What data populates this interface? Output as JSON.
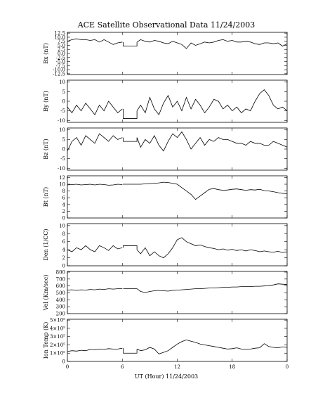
{
  "chart_data": {
    "title": "ACE Satellite Observational Data   11/24/2003",
    "xlabel": "UT (Hour)   11/24/2003",
    "x_ticks": [
      "0",
      "6",
      "12",
      "18",
      "0"
    ],
    "x_tick_hours": [
      0,
      6,
      12,
      18,
      24
    ],
    "xlim": [
      0,
      24
    ],
    "data_gap_hours": [
      6.1,
      7.6
    ],
    "panels": [
      {
        "type": "line",
        "ylabel": "Bx (nT)",
        "ylim": [
          -13,
          13
        ],
        "yticks": [
          12.5,
          10.0,
          7.5,
          5.0,
          2.5,
          0.0,
          -2.5,
          -5.0,
          -7.5,
          -10.0,
          -12.5
        ],
        "ytick_labels": [
          "12.5",
          "10.0",
          "7.5",
          "5.0",
          "2.5",
          "0.0",
          "-2.5",
          "-5.0",
          "-7.5",
          "-10.0",
          "-12.5"
        ],
        "x": [
          0,
          0.5,
          1,
          1.5,
          2,
          2.5,
          3,
          3.5,
          4,
          4.5,
          5,
          5.5,
          6,
          7.6,
          8,
          8.5,
          9,
          9.5,
          10,
          10.5,
          11,
          11.5,
          12,
          12.5,
          13,
          13.5,
          14,
          14.5,
          15,
          15.5,
          16,
          16.5,
          17,
          17.5,
          18,
          18.5,
          19,
          19.5,
          20,
          20.5,
          21,
          21.5,
          22,
          22.5,
          23,
          23.5,
          24
        ],
        "y": [
          7.5,
          8.5,
          9,
          8.5,
          8.5,
          8,
          8.5,
          7,
          8.5,
          7,
          5.5,
          6.5,
          7,
          7,
          8.5,
          7.5,
          7,
          8,
          7.5,
          6.5,
          6,
          7.5,
          6.5,
          5.5,
          3,
          6.5,
          5,
          6,
          7,
          6.5,
          7,
          8,
          8.5,
          7.5,
          8,
          7,
          7,
          7.5,
          7,
          6,
          5.5,
          6.5,
          6.5,
          6,
          6.5,
          4.5,
          6
        ],
        "gap_value": 4.5
      },
      {
        "type": "line",
        "ylabel": "By (nT)",
        "ylim": [
          -11,
          11
        ],
        "yticks": [
          10,
          5,
          0,
          -5,
          -10
        ],
        "ytick_labels": [
          "10",
          "5",
          "0",
          "-5",
          "-10"
        ],
        "x": [
          0,
          0.5,
          1,
          1.5,
          2,
          2.5,
          3,
          3.5,
          4,
          4.5,
          5,
          5.5,
          6,
          7.6,
          8,
          8.5,
          9,
          9.5,
          10,
          10.5,
          11,
          11.5,
          12,
          12.5,
          13,
          13.5,
          14,
          14.5,
          15,
          15.5,
          16,
          16.5,
          17,
          17.5,
          18,
          18.5,
          19,
          19.5,
          20,
          20.5,
          21,
          21.5,
          22,
          22.5,
          23,
          23.5,
          24
        ],
        "y": [
          -3,
          -6,
          -2,
          -5,
          -1,
          -4,
          -7,
          -2,
          -5,
          0,
          -3,
          -6,
          -4,
          -5,
          -2,
          -6,
          2,
          -4,
          -7,
          -1,
          3,
          -3,
          0,
          -5,
          2,
          -4,
          1,
          -2,
          -6,
          -3,
          1,
          0,
          -4,
          -2,
          -5,
          -3,
          -6,
          -4,
          -5,
          0,
          4,
          6,
          3,
          -2,
          -4,
          -3,
          -5
        ],
        "gap_value": -9
      },
      {
        "type": "line",
        "ylabel": "Bz (nT)",
        "ylim": [
          -11,
          11
        ],
        "yticks": [
          10,
          5,
          0,
          -5,
          -10
        ],
        "ytick_labels": [
          "10",
          "5",
          "0",
          "-5",
          "-10"
        ],
        "x": [
          0,
          0.5,
          1,
          1.5,
          2,
          2.5,
          3,
          3.5,
          4,
          4.5,
          5,
          5.5,
          6,
          7.6,
          8,
          8.5,
          9,
          9.5,
          10,
          10.5,
          11,
          11.5,
          12,
          12.5,
          13,
          13.5,
          14,
          14.5,
          15,
          15.5,
          16,
          16.5,
          17,
          17.5,
          18,
          18.5,
          19,
          19.5,
          20,
          20.5,
          21,
          21.5,
          22,
          22.5,
          23,
          23.5,
          24
        ],
        "y": [
          -1,
          4,
          6,
          2,
          7,
          5,
          3,
          8,
          6,
          4,
          7,
          5,
          6,
          6,
          1,
          5,
          3,
          7,
          2,
          -1,
          4,
          8,
          6,
          9,
          5,
          0,
          3,
          6,
          2,
          5,
          4,
          6,
          5,
          5,
          4,
          3,
          3,
          2,
          4,
          3,
          3,
          2,
          2,
          4,
          3,
          2,
          1
        ],
        "gap_value": 4
      },
      {
        "type": "line",
        "ylabel": "Bt (nT)",
        "ylim": [
          0,
          12.5
        ],
        "yticks": [
          12,
          10,
          8,
          6,
          4,
          2,
          0
        ],
        "ytick_labels": [
          "12",
          "10",
          "8",
          "6",
          "4",
          "2",
          "0"
        ],
        "x": [
          0,
          0.5,
          1,
          1.5,
          2,
          2.5,
          3,
          3.5,
          4,
          4.5,
          5,
          5.5,
          6,
          7.6,
          8,
          8.5,
          9,
          9.5,
          10,
          10.5,
          11,
          11.5,
          12,
          12.5,
          13,
          13.5,
          14,
          14.5,
          15,
          15.5,
          16,
          16.5,
          17,
          17.5,
          18,
          18.5,
          19,
          19.5,
          20,
          20.5,
          21,
          21.5,
          22,
          22.5,
          23,
          23.5,
          24
        ],
        "y": [
          9.8,
          9.9,
          10,
          9.8,
          9.9,
          10,
          9.8,
          10,
          9.9,
          9.7,
          9.8,
          10,
          9.9,
          10,
          10,
          10.1,
          10.2,
          10.3,
          10.4,
          10.6,
          10.5,
          10.3,
          10,
          9,
          8,
          7,
          5.5,
          6.5,
          7.5,
          8.5,
          8.7,
          8.4,
          8.2,
          8.3,
          8.5,
          8.6,
          8.4,
          8.2,
          8.4,
          8.3,
          8.5,
          8.1,
          8,
          7.8,
          7.5,
          7.3,
          7.2
        ],
        "gap_value": 10
      },
      {
        "type": "line",
        "ylabel": "Den (1/CC)",
        "ylim": [
          0,
          10.5
        ],
        "yticks": [
          10,
          8,
          6,
          4,
          2,
          0
        ],
        "ytick_labels": [
          "10",
          "8",
          "6",
          "4",
          "2",
          "0"
        ],
        "x": [
          0,
          0.5,
          1,
          1.5,
          2,
          2.5,
          3,
          3.5,
          4,
          4.5,
          5,
          5.5,
          6,
          7.6,
          8,
          8.5,
          9,
          9.5,
          10,
          10.5,
          11,
          11.5,
          12,
          12.5,
          13,
          13.5,
          14,
          14.5,
          15,
          15.5,
          16,
          16.5,
          17,
          17.5,
          18,
          18.5,
          19,
          19.5,
          20,
          20.5,
          21,
          21.5,
          22,
          22.5,
          23,
          23.5,
          24
        ],
        "y": [
          4,
          3.5,
          4.5,
          4,
          5,
          4,
          3.5,
          5,
          4.5,
          3.8,
          5,
          4.2,
          4.5,
          4,
          3,
          4.5,
          2.5,
          3.5,
          2.5,
          2,
          3,
          4.5,
          6.5,
          7,
          6,
          5.5,
          5,
          5.2,
          4.8,
          4.5,
          4.3,
          4,
          4.2,
          3.9,
          4.1,
          3.8,
          4,
          3.7,
          4,
          3.8,
          3.5,
          3.7,
          3.5,
          3.4,
          3.6,
          3.3,
          3.5
        ],
        "gap_value": 5
      },
      {
        "type": "line",
        "ylabel": "Vel (Km/sec)",
        "ylim": [
          200,
          810
        ],
        "yticks": [
          800,
          700,
          600,
          500,
          400,
          300,
          200
        ],
        "ytick_labels": [
          "800",
          "700",
          "600",
          "500",
          "400",
          "300",
          "200"
        ],
        "x": [
          0,
          0.5,
          1,
          1.5,
          2,
          2.5,
          3,
          3.5,
          4,
          4.5,
          5,
          5.5,
          6,
          7.6,
          8,
          8.5,
          9,
          9.5,
          10,
          10.5,
          11,
          11.5,
          12,
          12.5,
          13,
          13.5,
          14,
          14.5,
          15,
          15.5,
          16,
          16.5,
          17,
          17.5,
          18,
          18.5,
          19,
          19.5,
          20,
          20.5,
          21,
          21.5,
          22,
          22.5,
          23,
          23.5,
          24
        ],
        "y": [
          540,
          545,
          535,
          545,
          540,
          550,
          545,
          555,
          550,
          560,
          555,
          560,
          560,
          560,
          520,
          505,
          520,
          530,
          535,
          530,
          525,
          535,
          540,
          545,
          550,
          555,
          560,
          560,
          565,
          570,
          570,
          575,
          580,
          580,
          585,
          585,
          590,
          590,
          590,
          595,
          595,
          600,
          605,
          615,
          630,
          625,
          620
        ],
        "gap_value": 560
      },
      {
        "type": "line",
        "ylabel": "Ion Temp (K)",
        "ylim": [
          0,
          510000
        ],
        "yticks": [
          500000,
          400000,
          300000,
          200000,
          100000,
          0
        ],
        "ytick_labels": [
          "5×10⁵",
          "4×10⁵",
          "3×10⁵",
          "2×10⁵",
          "1×10⁵",
          "0"
        ],
        "x": [
          0,
          0.5,
          1,
          1.5,
          2,
          2.5,
          3,
          3.5,
          4,
          4.5,
          5,
          5.5,
          6,
          7.6,
          8,
          8.5,
          9,
          9.5,
          10,
          10.5,
          11,
          11.5,
          12,
          12.5,
          13,
          13.5,
          14,
          14.5,
          15,
          15.5,
          16,
          16.5,
          17,
          17.5,
          18,
          18.5,
          19,
          19.5,
          20,
          20.5,
          21,
          21.5,
          22,
          22.5,
          23,
          23.5,
          24
        ],
        "y": [
          120000,
          130000,
          125000,
          135000,
          130000,
          145000,
          140000,
          150000,
          145000,
          155000,
          150000,
          150000,
          160000,
          150000,
          130000,
          140000,
          170000,
          150000,
          90000,
          110000,
          130000,
          170000,
          210000,
          240000,
          260000,
          245000,
          230000,
          210000,
          200000,
          190000,
          180000,
          170000,
          160000,
          150000,
          155000,
          165000,
          150000,
          145000,
          150000,
          160000,
          165000,
          215000,
          180000,
          170000,
          165000,
          175000,
          170000
        ],
        "gap_value": 100000
      }
    ]
  }
}
